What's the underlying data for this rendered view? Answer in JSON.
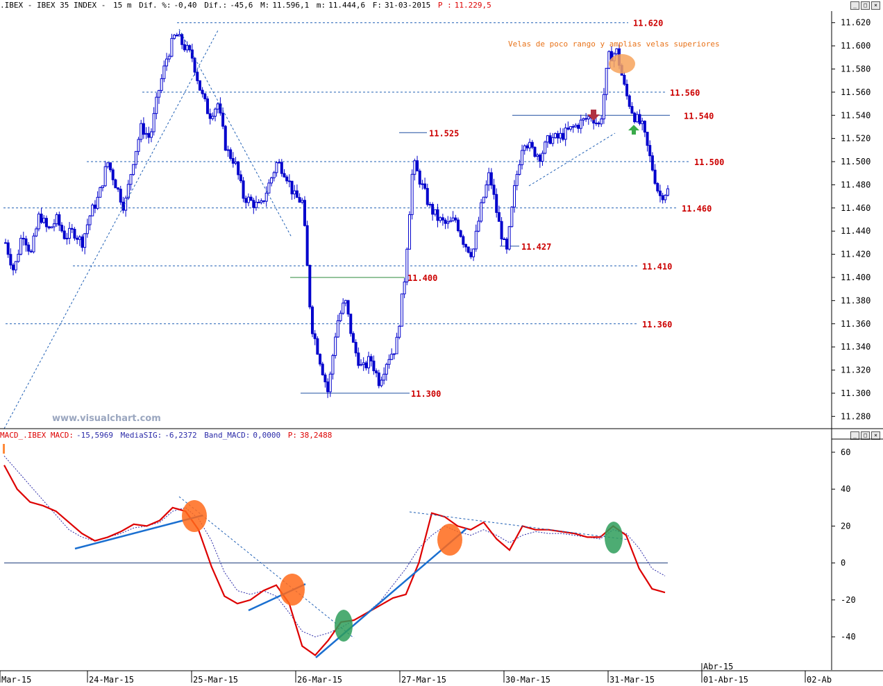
{
  "header": {
    "symbol": ".IBEX - IBEX 35 INDEX -",
    "interval": "15 m",
    "dif_pct_label": "Dif. %:",
    "dif_pct": "-0,40",
    "dif_label": "Dif.:",
    "dif": "-45,6",
    "max_label": "M:",
    "max": "11.596,1",
    "min_label": "m:",
    "min": "11.444,6",
    "date_label": "F:",
    "date": "31-03-2015",
    "price_label": "P :",
    "price": "11.229,5"
  },
  "macd_header": {
    "name": "MACD_.IBEX",
    "macd_label": "MACD:",
    "macd": "-15,5969",
    "sig_label": "MediaSIG:",
    "sig": "-6,2372",
    "band_label": "Band_MACD:",
    "band": "0,0000",
    "p_label": "P:",
    "p": "38,2488"
  },
  "watermark": "www.visualchart.com",
  "annotation": "Velas de poco rango y amplias velas superiores",
  "window_buttons": [
    "_",
    "□",
    "×"
  ],
  "colors": {
    "candle": "#0000cc",
    "level_label": "#cc0000",
    "level_line": "#1f5fb4",
    "macd": "#dd0000",
    "signal": "#2a2aa8",
    "trendline": "#1a6fd0",
    "orange_mark": "#ff6a1a",
    "green_mark": "#2e9e5a",
    "annotation": "#e8731a",
    "arrow_down": "#b03040",
    "arrow_up": "#3aaa4a"
  },
  "chart_data": [
    {
      "type": "candlestick",
      "title": "IBEX 35 INDEX 15 m",
      "ylim": [
        11270,
        11630
      ],
      "y_ticks": [
        11280,
        11300,
        11320,
        11340,
        11360,
        11380,
        11400,
        11420,
        11440,
        11460,
        11480,
        11500,
        11520,
        11540,
        11560,
        11580,
        11600,
        11620
      ],
      "y_tick_labels": [
        "11.280",
        "11.300",
        "11.320",
        "11.340",
        "11.360",
        "11.380",
        "11.400",
        "11.420",
        "11.440",
        "11.460",
        "11.480",
        "11.500",
        "11.520",
        "11.540",
        "11.560",
        "11.580",
        "11.600",
        "11.620"
      ],
      "x_labels": [
        "Mar-15",
        "24-Mar-15",
        "25-Mar-15",
        "26-Mar-15",
        "27-Mar-15",
        "30-Mar-15",
        "31-Mar-15",
        "01-Abr-15",
        "02-Ab"
      ],
      "x_sub_label": "Abr-15",
      "levels": [
        {
          "value": 11620,
          "label": "11.620"
        },
        {
          "value": 11560,
          "label": "11.560"
        },
        {
          "value": 11540,
          "label": "11.540"
        },
        {
          "value": 11525,
          "label": "11.525"
        },
        {
          "value": 11500,
          "label": "11.500"
        },
        {
          "value": 11460,
          "label": "11.460"
        },
        {
          "value": 11427,
          "label": "11.427"
        },
        {
          "value": 11410,
          "label": "11.410"
        },
        {
          "value": 11400,
          "label": "11.400"
        },
        {
          "value": 11360,
          "label": "11.360"
        },
        {
          "value": 11300,
          "label": "11.300"
        }
      ],
      "close_path": [
        11430,
        11405,
        11440,
        11420,
        11455,
        11440,
        11450,
        11435,
        11440,
        11430,
        11455,
        11470,
        11500,
        11480,
        11460,
        11500,
        11530,
        11520,
        11560,
        11590,
        11610,
        11600,
        11590,
        11560,
        11540,
        11550,
        11510,
        11500,
        11470,
        11465,
        11460,
        11480,
        11500,
        11490,
        11470,
        11465,
        11360,
        11330,
        11300,
        11360,
        11380,
        11340,
        11320,
        11330,
        11310,
        11330,
        11340,
        11400,
        11500,
        11480,
        11460,
        11450,
        11445,
        11450,
        11430,
        11420,
        11460,
        11490,
        11450,
        11420,
        11480,
        11520,
        11510,
        11505,
        11520,
        11520,
        11525,
        11530,
        11535,
        11540,
        11530,
        11590,
        11595,
        11560,
        11540,
        11530,
        11500,
        11470,
        11475
      ]
    },
    {
      "type": "line",
      "title": "MACD",
      "ylim": [
        -58,
        66
      ],
      "y_ticks": [
        60,
        40,
        20,
        0,
        -20,
        -40
      ],
      "y_tick_labels": [
        "60",
        "40",
        "20",
        "0",
        "-20",
        "-40"
      ],
      "series": [
        {
          "name": "MACD",
          "values": [
            53,
            40,
            33,
            31,
            28,
            22,
            16,
            12,
            14,
            17,
            21,
            20,
            23,
            30,
            28,
            18,
            -2,
            -18,
            -22,
            -20,
            -15,
            -12,
            -22,
            -45,
            -50,
            -42,
            -32,
            -31,
            -27,
            -23,
            -19,
            -17,
            0,
            27,
            25,
            20,
            18,
            22,
            13,
            7,
            20,
            18,
            18,
            17,
            16,
            14,
            14,
            20,
            15,
            -3,
            -14,
            -16
          ]
        },
        {
          "name": "MediaSIG",
          "values": [
            58,
            50,
            42,
            34,
            26,
            18,
            14,
            12,
            14,
            16,
            19,
            20,
            22,
            28,
            30,
            24,
            12,
            -5,
            -15,
            -17,
            -15,
            -18,
            -27,
            -37,
            -40,
            -38,
            -35,
            -31,
            -27,
            -21,
            -12,
            -3,
            8,
            15,
            20,
            17,
            15,
            18,
            15,
            11,
            15,
            17,
            16,
            16,
            15,
            14,
            13,
            18,
            16,
            8,
            -3,
            -7
          ]
        }
      ]
    }
  ]
}
